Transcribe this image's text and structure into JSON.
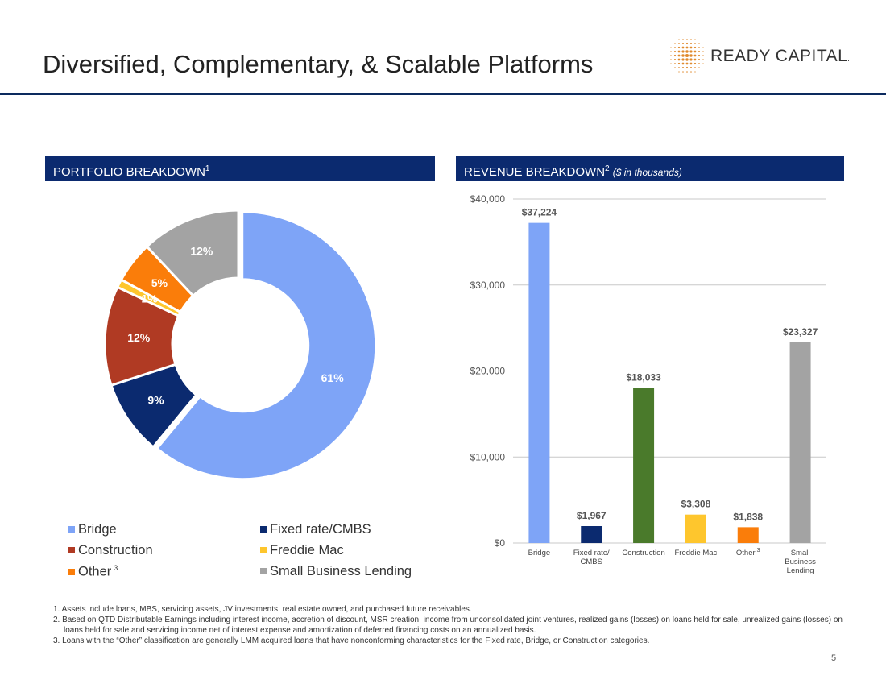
{
  "header": {
    "title": "Diversified, Complementary, & Scalable Platforms"
  },
  "logo": {
    "text": "READY CAPITAL",
    "mark": "."
  },
  "portfolio": {
    "heading": "PORTFOLIO BREAKDOWN",
    "heading_sup": "1",
    "legend": [
      {
        "label": "Bridge",
        "sup": ""
      },
      {
        "label": "Fixed rate/CMBS",
        "sup": ""
      },
      {
        "label": "Construction",
        "sup": ""
      },
      {
        "label": "Freddie Mac",
        "sup": ""
      },
      {
        "label": "Other",
        "sup": "3"
      },
      {
        "label": "Small Business Lending",
        "sup": ""
      }
    ]
  },
  "revenue": {
    "heading": "REVENUE BREAKDOWN",
    "heading_sup": "2",
    "heading_note": "($ in thousands)"
  },
  "chart_data": [
    {
      "type": "pie",
      "variant": "donut",
      "categories": [
        "Bridge",
        "Fixed rate/CMBS",
        "Construction",
        "Freddie Mac",
        "Other",
        "Small Business Lending"
      ],
      "values": [
        61,
        9,
        12,
        1,
        5,
        12
      ],
      "labels": [
        "61%",
        "9%",
        "12%",
        "1%",
        "5%",
        "12%"
      ],
      "colors": [
        "#7ea4f7",
        "#0b2a6f",
        "#b03a23",
        "#fec62d",
        "#fa7d0a",
        "#a3a3a3"
      ],
      "legend_position": "bottom"
    },
    {
      "type": "bar",
      "categories": [
        "Bridge",
        "Fixed rate/ CMBS",
        "Construction",
        "Freddie Mac",
        "Other",
        "Small Business Lending"
      ],
      "category_sups": [
        "",
        "",
        "",
        "",
        "3",
        ""
      ],
      "values": [
        37224,
        1967,
        18033,
        3308,
        1838,
        23327
      ],
      "data_labels": [
        "$37,224",
        "$1,967",
        "$18,033",
        "$3,308",
        "$1,838",
        "$23,327"
      ],
      "colors": [
        "#7ea4f7",
        "#0b2a6f",
        "#4a7a2b",
        "#fec62d",
        "#fa7d0a",
        "#a3a3a3"
      ],
      "yticks": [
        "$0",
        "$10,000",
        "$20,000",
        "$30,000",
        "$40,000"
      ],
      "ytick_values": [
        0,
        10000,
        20000,
        30000,
        40000
      ],
      "ylim": [
        0,
        40000
      ],
      "grid": true
    }
  ],
  "footnotes": [
    "1. Assets include loans, MBS, servicing assets, JV investments, real estate owned, and purchased future receivables.",
    "2. Based on QTD Distributable Earnings including interest income, accretion of discount, MSR creation, income from unconsolidated joint ventures, realized gains (losses) on loans held for sale, unrealized gains (losses) on loans held for sale and servicing income net of interest expense and amortization of deferred financing costs on an annualized basis.",
    "3. Loans with the “Other” classification are generally LMM acquired loans that have nonconforming characteristics for the Fixed rate, Bridge, or Construction categories."
  ],
  "page": {
    "number": "5"
  }
}
